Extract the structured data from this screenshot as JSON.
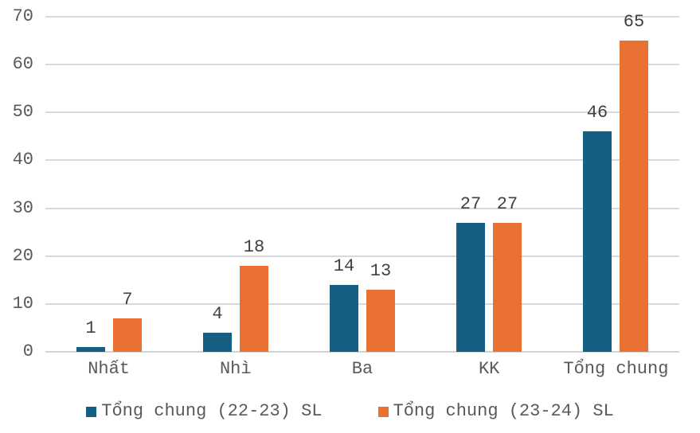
{
  "chart_data": {
    "type": "bar",
    "title": "",
    "categories": [
      "Nhất",
      "Nhì",
      "Ba",
      "KK",
      "Tổng chung"
    ],
    "series": [
      {
        "name": "Tổng chung (22-23) SL",
        "color": "#156082",
        "values": [
          1,
          4,
          14,
          27,
          46
        ]
      },
      {
        "name": "Tổng chung (23-24) SL",
        "color": "#E97132",
        "values": [
          7,
          18,
          13,
          27,
          65
        ]
      }
    ],
    "ylim": [
      0,
      70
    ],
    "ytick_step": 10,
    "yticks": [
      "0",
      "10",
      "20",
      "30",
      "40",
      "50",
      "60",
      "70"
    ],
    "xlabel": "",
    "ylabel": "",
    "grid": true,
    "data_labels": true,
    "legend_position": "bottom"
  },
  "colors": {
    "background": "#FFFFFF",
    "gridline": "#D9D9D9",
    "axis_line": "#D2D2D2",
    "tick_label": "#595959",
    "value_label": "#404040",
    "category_label": "#595959",
    "legend_label": "#595959"
  }
}
